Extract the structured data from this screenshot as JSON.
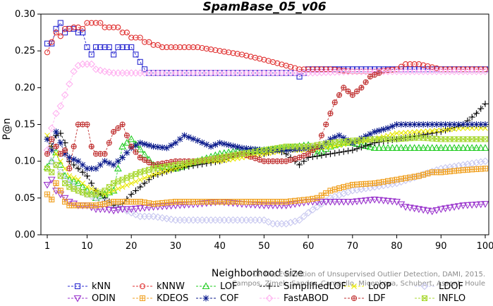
{
  "chart_data": {
    "type": "line",
    "title": "SpamBase_05_v06",
    "xlabel": "Neighborhood size",
    "ylabel": "P@n",
    "xlim": [
      1,
      100
    ],
    "ylim": [
      0,
      0.3
    ],
    "xticks": [
      1,
      10,
      20,
      30,
      40,
      50,
      60,
      70,
      80,
      90,
      100
    ],
    "yticks": [
      0.0,
      0.05,
      0.1,
      0.15,
      0.2,
      0.25,
      0.3
    ],
    "grid": false,
    "legend_position": "bottom",
    "credit": "Campos, Zimek, Sander, Campello, Micenkova, Schubert, Assent, Houle",
    "credit_title": "On the Evaluation of Unsupervised Outlier Detection, DAMI, 2015.",
    "series": [
      {
        "name": "kNN",
        "color": "#2b2bd1",
        "marker": "square",
        "line": "dashed",
        "x": [
          1,
          2,
          3,
          4,
          5,
          6,
          7,
          8,
          9,
          10,
          11,
          12,
          13,
          14,
          15,
          16,
          17,
          18,
          19,
          20,
          21,
          22,
          23,
          24,
          25,
          26,
          30,
          40,
          50,
          55,
          57,
          58,
          59,
          60,
          70,
          80,
          90,
          100
        ],
        "y": [
          0.26,
          0.26,
          0.28,
          0.288,
          0.275,
          0.28,
          0.28,
          0.275,
          0.275,
          0.255,
          0.245,
          0.255,
          0.255,
          0.255,
          0.255,
          0.245,
          0.255,
          0.255,
          0.255,
          0.255,
          0.245,
          0.235,
          0.225,
          0.22,
          0.22,
          0.22,
          0.22,
          0.22,
          0.22,
          0.22,
          0.22,
          0.215,
          0.22,
          0.225,
          0.225,
          0.225,
          0.225,
          0.225
        ]
      },
      {
        "name": "kNNW",
        "color": "#e03030",
        "marker": "circle",
        "line": "dashed",
        "x": [
          1,
          2,
          3,
          4,
          5,
          6,
          7,
          8,
          9,
          10,
          11,
          12,
          13,
          14,
          15,
          16,
          17,
          18,
          19,
          20,
          21,
          22,
          23,
          24,
          25,
          26,
          27,
          30,
          35,
          40,
          45,
          50,
          55,
          58,
          60,
          65,
          70,
          75,
          80,
          82,
          85,
          90,
          100
        ],
        "y": [
          0.248,
          0.262,
          0.275,
          0.27,
          0.28,
          0.28,
          0.282,
          0.282,
          0.28,
          0.288,
          0.288,
          0.288,
          0.288,
          0.282,
          0.282,
          0.282,
          0.282,
          0.275,
          0.275,
          0.268,
          0.268,
          0.268,
          0.262,
          0.262,
          0.258,
          0.258,
          0.255,
          0.255,
          0.255,
          0.25,
          0.245,
          0.238,
          0.23,
          0.225,
          0.225,
          0.225,
          0.222,
          0.222,
          0.225,
          0.232,
          0.232,
          0.225,
          0.225
        ]
      },
      {
        "name": "LOF",
        "color": "#22cc22",
        "marker": "triangle",
        "line": "dashed",
        "x": [
          1,
          2,
          3,
          4,
          5,
          6,
          8,
          10,
          12,
          14,
          16,
          18,
          20,
          25,
          30,
          35,
          40,
          45,
          50,
          55,
          60,
          62,
          65,
          68,
          70,
          75,
          80,
          85,
          90,
          100
        ],
        "y": [
          0.092,
          0.1,
          0.112,
          0.095,
          0.08,
          0.075,
          0.07,
          0.06,
          0.05,
          0.055,
          0.06,
          0.12,
          0.13,
          0.095,
          0.09,
          0.1,
          0.11,
          0.115,
          0.115,
          0.118,
          0.122,
          0.11,
          0.12,
          0.125,
          0.125,
          0.118,
          0.118,
          0.118,
          0.118,
          0.118
        ]
      },
      {
        "name": "SimplifiedLOF",
        "color": "#000000",
        "marker": "plus",
        "line": "dashed",
        "x": [
          1,
          2,
          3,
          4,
          5,
          6,
          8,
          10,
          12,
          14,
          16,
          18,
          20,
          22,
          25,
          30,
          35,
          40,
          45,
          50,
          53,
          55,
          58,
          60,
          65,
          70,
          75,
          80,
          85,
          90,
          95,
          98,
          100
        ],
        "y": [
          0.13,
          0.12,
          0.135,
          0.138,
          0.125,
          0.1,
          0.09,
          0.08,
          0.06,
          0.05,
          0.04,
          0.042,
          0.055,
          0.065,
          0.08,
          0.09,
          0.095,
          0.1,
          0.11,
          0.11,
          0.115,
          0.11,
          0.095,
          0.105,
          0.11,
          0.115,
          0.125,
          0.13,
          0.135,
          0.14,
          0.15,
          0.165,
          0.178
        ]
      },
      {
        "name": "LoOP",
        "color": "#e8e800",
        "marker": "cross",
        "line": "dashed",
        "x": [
          1,
          2,
          3,
          4,
          5,
          6,
          8,
          10,
          12,
          14,
          16,
          18,
          20,
          25,
          30,
          35,
          40,
          45,
          50,
          55,
          60,
          65,
          70,
          75,
          80,
          85,
          90,
          95,
          100
        ],
        "y": [
          0.135,
          0.118,
          0.11,
          0.1,
          0.09,
          0.08,
          0.075,
          0.065,
          0.06,
          0.055,
          0.06,
          0.065,
          0.07,
          0.082,
          0.09,
          0.1,
          0.1,
          0.105,
          0.11,
          0.115,
          0.115,
          0.12,
          0.125,
          0.13,
          0.138,
          0.14,
          0.142,
          0.145,
          0.145
        ]
      },
      {
        "name": "LDOF",
        "color": "#c8c8f0",
        "marker": "diamond",
        "line": "dashed",
        "x": [
          1,
          2,
          3,
          4,
          5,
          6,
          8,
          10,
          12,
          14,
          16,
          18,
          20,
          22,
          25,
          28,
          30,
          35,
          40,
          45,
          50,
          52,
          55,
          58,
          60,
          65,
          70,
          75,
          80,
          85,
          90,
          95,
          100
        ],
        "y": [
          0.115,
          0.1,
          0.095,
          0.085,
          0.075,
          0.07,
          0.06,
          0.055,
          0.05,
          0.045,
          0.04,
          0.035,
          0.03,
          0.025,
          0.025,
          0.022,
          0.02,
          0.02,
          0.02,
          0.02,
          0.02,
          0.015,
          0.015,
          0.02,
          0.03,
          0.05,
          0.06,
          0.065,
          0.07,
          0.08,
          0.09,
          0.095,
          0.1
        ]
      },
      {
        "name": "ODIN",
        "color": "#9932cc",
        "marker": "triangle-down",
        "line": "dashed",
        "x": [
          1,
          2,
          3,
          4,
          5,
          6,
          8,
          10,
          12,
          14,
          16,
          18,
          20,
          25,
          30,
          35,
          40,
          45,
          50,
          55,
          60,
          65,
          70,
          75,
          80,
          82,
          85,
          88,
          90,
          95,
          100
        ],
        "y": [
          0.068,
          0.075,
          0.06,
          0.055,
          0.05,
          0.045,
          0.04,
          0.04,
          0.035,
          0.035,
          0.033,
          0.035,
          0.035,
          0.038,
          0.04,
          0.042,
          0.045,
          0.042,
          0.04,
          0.04,
          0.045,
          0.045,
          0.045,
          0.048,
          0.045,
          0.038,
          0.035,
          0.032,
          0.035,
          0.04,
          0.042
        ]
      },
      {
        "name": "KDEOS",
        "color": "#f0a020",
        "marker": "square-cross",
        "line": "dashed",
        "x": [
          1,
          2,
          3,
          4,
          5,
          6,
          8,
          10,
          12,
          14,
          16,
          18,
          20,
          22,
          25,
          30,
          35,
          40,
          45,
          50,
          55,
          60,
          62,
          65,
          68,
          70,
          75,
          80,
          85,
          88,
          90,
          95,
          100
        ],
        "y": [
          0.055,
          0.048,
          0.07,
          0.06,
          0.045,
          0.04,
          0.04,
          0.04,
          0.04,
          0.042,
          0.045,
          0.045,
          0.045,
          0.045,
          0.042,
          0.045,
          0.045,
          0.045,
          0.045,
          0.045,
          0.045,
          0.048,
          0.05,
          0.06,
          0.065,
          0.068,
          0.07,
          0.075,
          0.08,
          0.085,
          0.085,
          0.088,
          0.09
        ]
      },
      {
        "name": "COF",
        "color": "#0a1a8c",
        "marker": "star",
        "line": "dashed",
        "x": [
          1,
          2,
          3,
          4,
          5,
          6,
          8,
          10,
          12,
          14,
          16,
          18,
          20,
          22,
          25,
          28,
          30,
          32,
          35,
          38,
          40,
          45,
          50,
          55,
          60,
          63,
          65,
          67,
          70,
          75,
          78,
          80,
          85,
          90,
          95,
          100
        ],
        "y": [
          0.13,
          0.115,
          0.14,
          0.125,
          0.11,
          0.105,
          0.1,
          0.09,
          0.09,
          0.1,
          0.095,
          0.105,
          0.118,
          0.125,
          0.12,
          0.118,
          0.125,
          0.135,
          0.128,
          0.12,
          0.125,
          0.118,
          0.115,
          0.115,
          0.118,
          0.12,
          0.13,
          0.135,
          0.125,
          0.14,
          0.145,
          0.15,
          0.15,
          0.15,
          0.15,
          0.15
        ]
      },
      {
        "name": "FastABOD",
        "color": "#ffb0f0",
        "marker": "diamond",
        "line": "dashed",
        "x": [
          1,
          2,
          3,
          4,
          5,
          6,
          7,
          8,
          9,
          10,
          11,
          12,
          14,
          16,
          18,
          20,
          25,
          30,
          40,
          50,
          60,
          70,
          80,
          90,
          100
        ],
        "y": [
          0.115,
          0.145,
          0.165,
          0.175,
          0.19,
          0.205,
          0.222,
          0.23,
          0.232,
          0.232,
          0.232,
          0.225,
          0.222,
          0.22,
          0.22,
          0.22,
          0.22,
          0.22,
          0.22,
          0.22,
          0.22,
          0.222,
          0.222,
          0.222,
          0.222
        ]
      },
      {
        "name": "LDF",
        "color": "#c03030",
        "marker": "circle-plus",
        "line": "dashed",
        "x": [
          1,
          2,
          3,
          4,
          5,
          6,
          8,
          10,
          11,
          12,
          14,
          16,
          18,
          20,
          22,
          25,
          30,
          35,
          40,
          45,
          50,
          55,
          58,
          60,
          62,
          64,
          66,
          68,
          70,
          72,
          74,
          76
        ],
        "y": [
          0.11,
          0.13,
          0.12,
          0.11,
          0.115,
          0.09,
          0.15,
          0.15,
          0.12,
          0.11,
          0.11,
          0.14,
          0.15,
          0.12,
          0.105,
          0.095,
          0.1,
          0.1,
          0.105,
          0.11,
          0.1,
          0.1,
          0.105,
          0.11,
          0.12,
          0.15,
          0.18,
          0.2,
          0.19,
          0.2,
          0.215,
          0.22
        ]
      },
      {
        "name": "INFLO",
        "color": "#a8d830",
        "marker": "square-x",
        "line": "dashed",
        "x": [
          1,
          2,
          3,
          4,
          5,
          6,
          8,
          10,
          12,
          14,
          16,
          18,
          20,
          22,
          25,
          30,
          35,
          40,
          45,
          50,
          55,
          60,
          65,
          70,
          75,
          80,
          85,
          90,
          95,
          100
        ],
        "y": [
          0.09,
          0.085,
          0.095,
          0.08,
          0.07,
          0.065,
          0.06,
          0.055,
          0.055,
          0.06,
          0.07,
          0.075,
          0.08,
          0.085,
          0.09,
          0.095,
          0.1,
          0.105,
          0.11,
          0.115,
          0.12,
          0.12,
          0.125,
          0.128,
          0.13,
          0.13,
          0.132,
          0.13,
          0.13,
          0.13
        ]
      }
    ]
  }
}
